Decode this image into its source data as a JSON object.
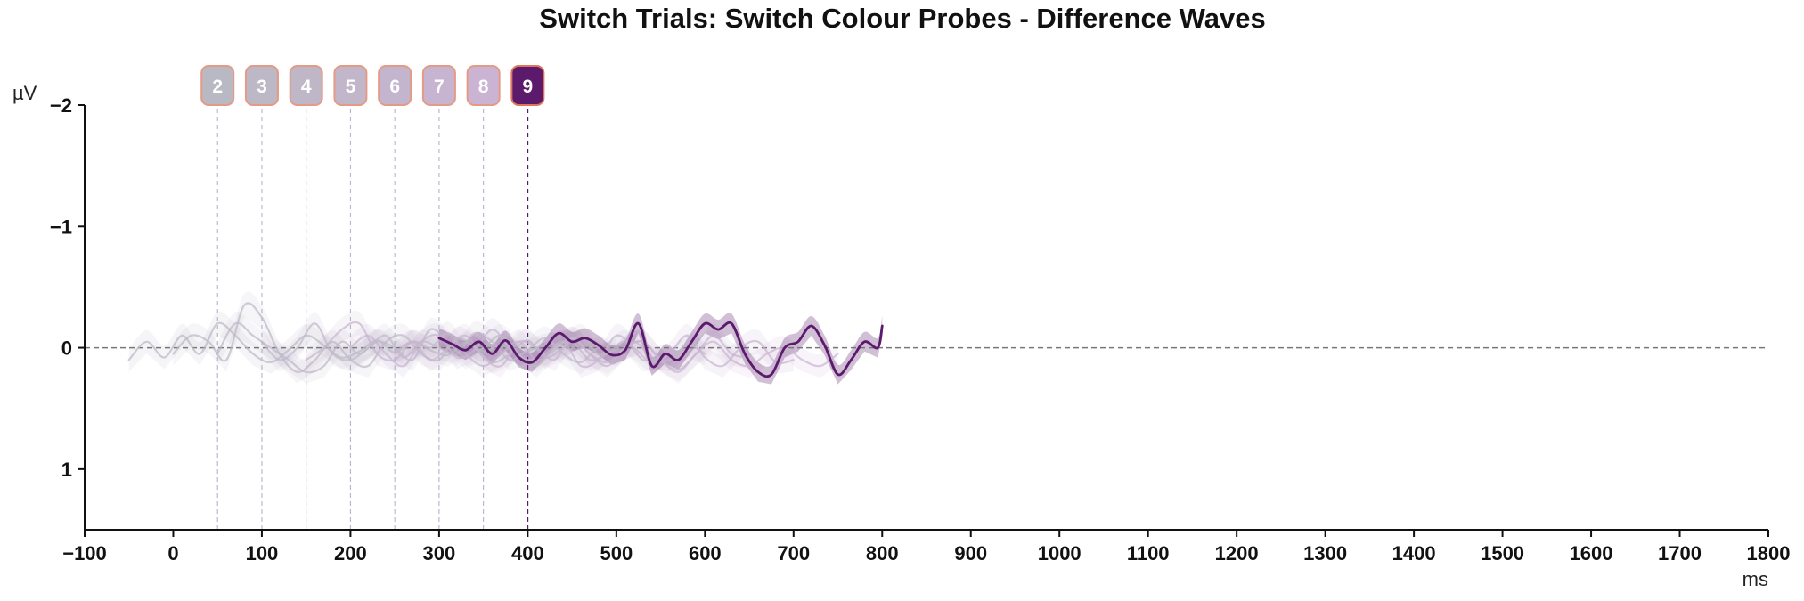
{
  "chart_data": {
    "type": "line",
    "title": "Switch Trials: Switch Colour Probes - Difference Waves",
    "xlabel": "ms",
    "ylabel": "µV",
    "xlim": [
      -100,
      1800
    ],
    "ylim": [
      -2,
      1.5
    ],
    "y_inverted": true,
    "x_ticks": [
      -100,
      0,
      100,
      200,
      300,
      400,
      500,
      600,
      700,
      800,
      900,
      1000,
      1100,
      1200,
      1300,
      1400,
      1500,
      1600,
      1700,
      1800
    ],
    "x_tick_labels": [
      "−100",
      "0",
      "100",
      "200",
      "300",
      "400",
      "500",
      "600",
      "700",
      "800",
      "900",
      "1000",
      "1100",
      "1200",
      "1300",
      "1400",
      "1500",
      "1600",
      "1700",
      "1800"
    ],
    "y_ticks": [
      -2,
      -1,
      0,
      1
    ],
    "y_tick_labels": [
      "−2",
      "−1",
      "0",
      "1"
    ],
    "zero_line": true,
    "grid": false,
    "highlighted_series": "9",
    "colors": {
      "highlight": "#5b1a6b",
      "highlight_badge_border": "#e0745a",
      "badge_border": "#e59a86",
      "faded_start": "#b9b9c3",
      "faded_end": "#cdb2d6",
      "zero_line": "#777777",
      "axis": "#111111"
    },
    "series": [
      {
        "name": "2",
        "onset": 50,
        "x": [
          -50,
          -30,
          -10,
          10,
          30,
          50,
          70,
          90,
          110,
          130,
          150,
          170,
          190,
          210,
          230,
          250,
          270,
          290,
          310,
          330,
          350,
          370,
          390,
          410,
          430,
          450
        ],
        "values": [
          0.1,
          -0.05,
          0.08,
          -0.1,
          0.05,
          -0.2,
          -0.1,
          0.05,
          0.12,
          0.02,
          -0.1,
          -0.02,
          0.08,
          0.03,
          -0.06,
          0.04,
          -0.05,
          0.02,
          0.06,
          -0.04,
          0.03,
          -0.02,
          0.05,
          0.0,
          -0.03,
          0.02
        ]
      },
      {
        "name": "3",
        "onset": 100,
        "x": [
          0,
          20,
          40,
          60,
          80,
          100,
          120,
          140,
          160,
          180,
          200,
          220,
          240,
          260,
          280,
          300,
          320,
          340,
          360,
          380,
          400,
          420,
          440,
          460,
          480,
          500
        ],
        "values": [
          0.05,
          -0.1,
          -0.05,
          0.1,
          -0.35,
          -0.25,
          0.05,
          0.2,
          0.1,
          -0.05,
          0.1,
          0.15,
          -0.05,
          -0.1,
          0.05,
          0.1,
          -0.08,
          0.0,
          0.12,
          0.05,
          -0.06,
          0.08,
          0.0,
          -0.1,
          0.05,
          0.02
        ]
      },
      {
        "name": "4",
        "onset": 150,
        "x": [
          50,
          70,
          90,
          110,
          130,
          150,
          170,
          190,
          210,
          230,
          250,
          270,
          290,
          310,
          330,
          350,
          370,
          390,
          410,
          430,
          450,
          470,
          490,
          510,
          530,
          550
        ],
        "values": [
          0.05,
          -0.2,
          -0.1,
          0.0,
          0.1,
          0.2,
          0.15,
          -0.05,
          0.05,
          -0.05,
          0.0,
          0.1,
          -0.15,
          -0.05,
          0.08,
          0.0,
          -0.1,
          0.05,
          0.15,
          0.0,
          -0.05,
          0.1,
          0.05,
          -0.05,
          0.1,
          0.08
        ]
      },
      {
        "name": "5",
        "onset": 200,
        "x": [
          100,
          120,
          140,
          160,
          180,
          200,
          220,
          240,
          260,
          280,
          300,
          320,
          340,
          360,
          380,
          400,
          420,
          440,
          460,
          480,
          500,
          520,
          540,
          560,
          580,
          600
        ],
        "values": [
          -0.05,
          0.1,
          0.0,
          -0.2,
          0.05,
          0.1,
          0.0,
          -0.1,
          0.08,
          -0.05,
          0.0,
          0.05,
          -0.12,
          -0.05,
          0.1,
          0.02,
          -0.08,
          0.05,
          0.12,
          0.0,
          0.06,
          -0.05,
          0.08,
          0.1,
          -0.02,
          0.05
        ]
      },
      {
        "name": "6",
        "onset": 250,
        "x": [
          150,
          170,
          190,
          210,
          230,
          250,
          270,
          290,
          310,
          330,
          350,
          370,
          390,
          410,
          430,
          450,
          470,
          490,
          510,
          530,
          550,
          570,
          590,
          610,
          630,
          650
        ],
        "values": [
          0.1,
          0.0,
          -0.15,
          -0.2,
          0.05,
          0.1,
          -0.05,
          0.0,
          -0.12,
          0.05,
          0.15,
          0.05,
          -0.05,
          0.1,
          0.02,
          -0.08,
          0.05,
          0.15,
          0.0,
          -0.05,
          0.1,
          0.18,
          0.05,
          -0.1,
          0.05,
          0.08
        ]
      },
      {
        "name": "7",
        "onset": 300,
        "x": [
          200,
          220,
          240,
          260,
          280,
          300,
          320,
          340,
          360,
          380,
          400,
          420,
          440,
          460,
          480,
          500,
          520,
          540,
          560,
          580,
          600,
          620,
          640,
          660,
          680,
          700
        ],
        "values": [
          0.0,
          -0.1,
          0.05,
          0.15,
          -0.05,
          -0.1,
          0.08,
          0.02,
          -0.15,
          0.0,
          0.1,
          0.05,
          -0.05,
          0.15,
          0.1,
          -0.1,
          0.0,
          0.12,
          0.05,
          -0.1,
          0.08,
          0.15,
          0.0,
          -0.05,
          0.12,
          0.1
        ]
      },
      {
        "name": "8",
        "onset": 350,
        "x": [
          250,
          270,
          290,
          310,
          330,
          350,
          370,
          390,
          410,
          430,
          450,
          470,
          490,
          510,
          530,
          550,
          570,
          590,
          610,
          630,
          650,
          670,
          690,
          710,
          730,
          750
        ],
        "values": [
          0.05,
          -0.05,
          0.1,
          0.0,
          -0.1,
          0.08,
          0.15,
          -0.05,
          0.0,
          0.1,
          -0.08,
          0.05,
          0.12,
          0.0,
          -0.05,
          0.1,
          0.2,
          0.05,
          -0.05,
          0.1,
          0.15,
          0.05,
          0.0,
          0.1,
          0.15,
          0.05
        ]
      },
      {
        "name": "9",
        "onset": 400,
        "x": [
          300,
          315,
          330,
          345,
          360,
          375,
          390,
          405,
          420,
          435,
          450,
          465,
          480,
          495,
          510,
          525,
          540,
          555,
          570,
          585,
          600,
          615,
          630,
          645,
          660,
          675,
          690,
          705,
          720,
          735,
          750,
          765,
          780,
          795,
          800
        ],
        "values": [
          -0.08,
          -0.03,
          0.02,
          -0.05,
          0.05,
          -0.06,
          0.08,
          0.12,
          0.0,
          -0.12,
          -0.05,
          -0.08,
          -0.02,
          0.06,
          0.02,
          -0.2,
          0.15,
          0.05,
          0.1,
          -0.05,
          -0.2,
          -0.15,
          -0.2,
          0.05,
          0.2,
          0.22,
          0.0,
          -0.05,
          -0.18,
          -0.02,
          0.22,
          0.1,
          -0.05,
          0.0,
          -0.18
        ]
      }
    ]
  }
}
